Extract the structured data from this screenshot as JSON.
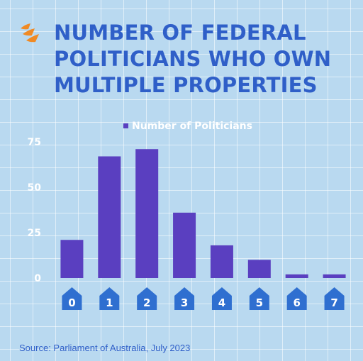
{
  "header": {
    "title_lines": [
      "NUMBER OF FEDERAL",
      "POLITICIANS WHO OWN",
      "MULTIPLE PROPERTIES"
    ]
  },
  "brand": {
    "logo_icon": "sbs-logo-icon",
    "logo_color": "#f08a24"
  },
  "colors": {
    "bar": "#5a3fc0",
    "house": "#2f6fd0",
    "title": "#2f5fc8",
    "axis_text": "#ffffff",
    "background": "#b9d9f0"
  },
  "chart_data": {
    "type": "bar",
    "categories": [
      "0",
      "1",
      "2",
      "3",
      "4",
      "5",
      "6",
      "7"
    ],
    "series": [
      {
        "name": "Number of Politicians",
        "values": [
          21,
          67,
          71,
          36,
          18,
          10,
          2,
          2
        ]
      }
    ],
    "ylim": [
      0,
      75
    ],
    "yticks": [
      0,
      25,
      50,
      75
    ],
    "legend_position": "top",
    "grid": true,
    "category_marker_icon": "house-icon"
  },
  "footer": {
    "source": "Source: Parliament of Australia, July 2023"
  }
}
